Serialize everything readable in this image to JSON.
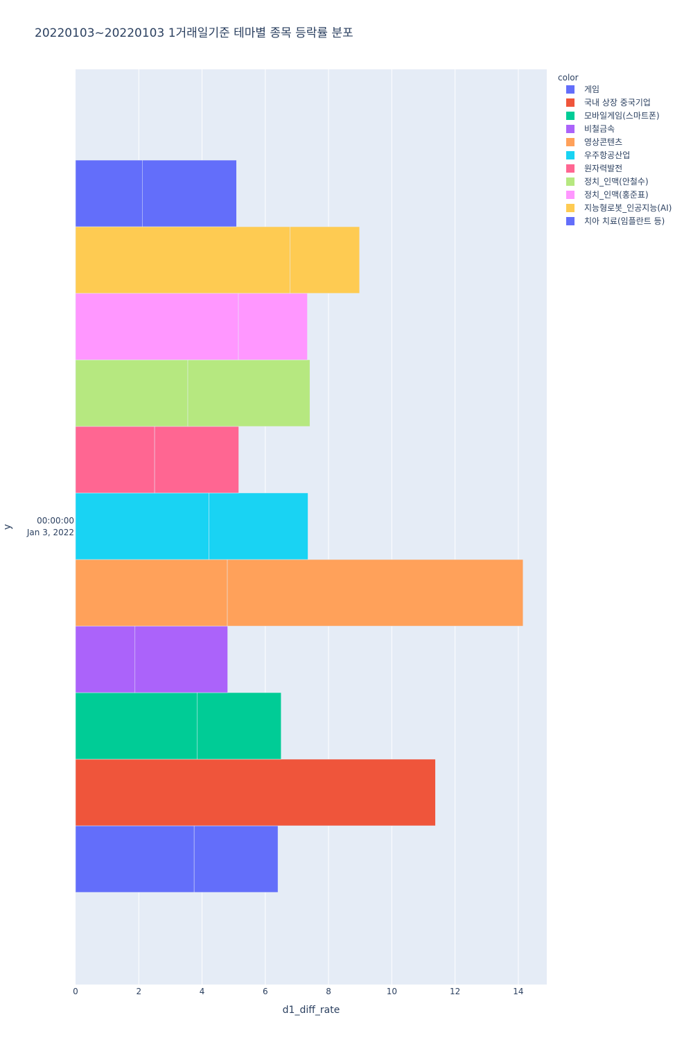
{
  "chart_data": {
    "type": "bar",
    "orientation": "horizontal",
    "barmode": "stack",
    "title": "20220103~20220103 1거래일기준 테마별 종목 등락률 분포",
    "xlabel": "d1_diff_rate",
    "ylabel": "y",
    "xlim": [
      0,
      14.9
    ],
    "x_ticks": [
      0,
      2,
      4,
      6,
      8,
      10,
      12,
      14
    ],
    "y_tick_label": [
      "00:00:00",
      "Jan 3, 2022"
    ],
    "grid": true,
    "legend_title": "color",
    "legend_position": "top-right",
    "series": [
      {
        "name": "게임",
        "color": "#636efa",
        "segments": [
          3.75,
          2.65
        ]
      },
      {
        "name": "국내 상장 중국기업",
        "color": "#EF553B",
        "segments": [
          11.38
        ]
      },
      {
        "name": "모바일게임(스마트폰)",
        "color": "#00cc96",
        "segments": [
          3.85,
          2.65
        ]
      },
      {
        "name": "비철금속",
        "color": "#ab63fa",
        "segments": [
          1.88,
          2.93
        ]
      },
      {
        "name": "영상콘텐츠",
        "color": "#FFA15A",
        "segments": [
          4.8,
          9.35
        ]
      },
      {
        "name": "우주항공산업",
        "color": "#19d3f3",
        "segments": [
          4.22,
          3.13
        ]
      },
      {
        "name": "원자력발전",
        "color": "#FF6692",
        "segments": [
          2.5,
          2.66
        ]
      },
      {
        "name": "정치_인맥(안철수)",
        "color": "#B6E880",
        "segments": [
          3.55,
          3.86
        ]
      },
      {
        "name": "정치_인맥(홍준표)",
        "color": "#FF97FF",
        "segments": [
          5.15,
          2.18
        ]
      },
      {
        "name": "지능형로봇_인공지능(AI)",
        "color": "#FECB52",
        "segments": [
          6.78,
          2.2
        ]
      },
      {
        "name": "치아 치료(임플란트 등)",
        "color": "#636efa",
        "segments": [
          2.12,
          2.97
        ]
      }
    ]
  }
}
